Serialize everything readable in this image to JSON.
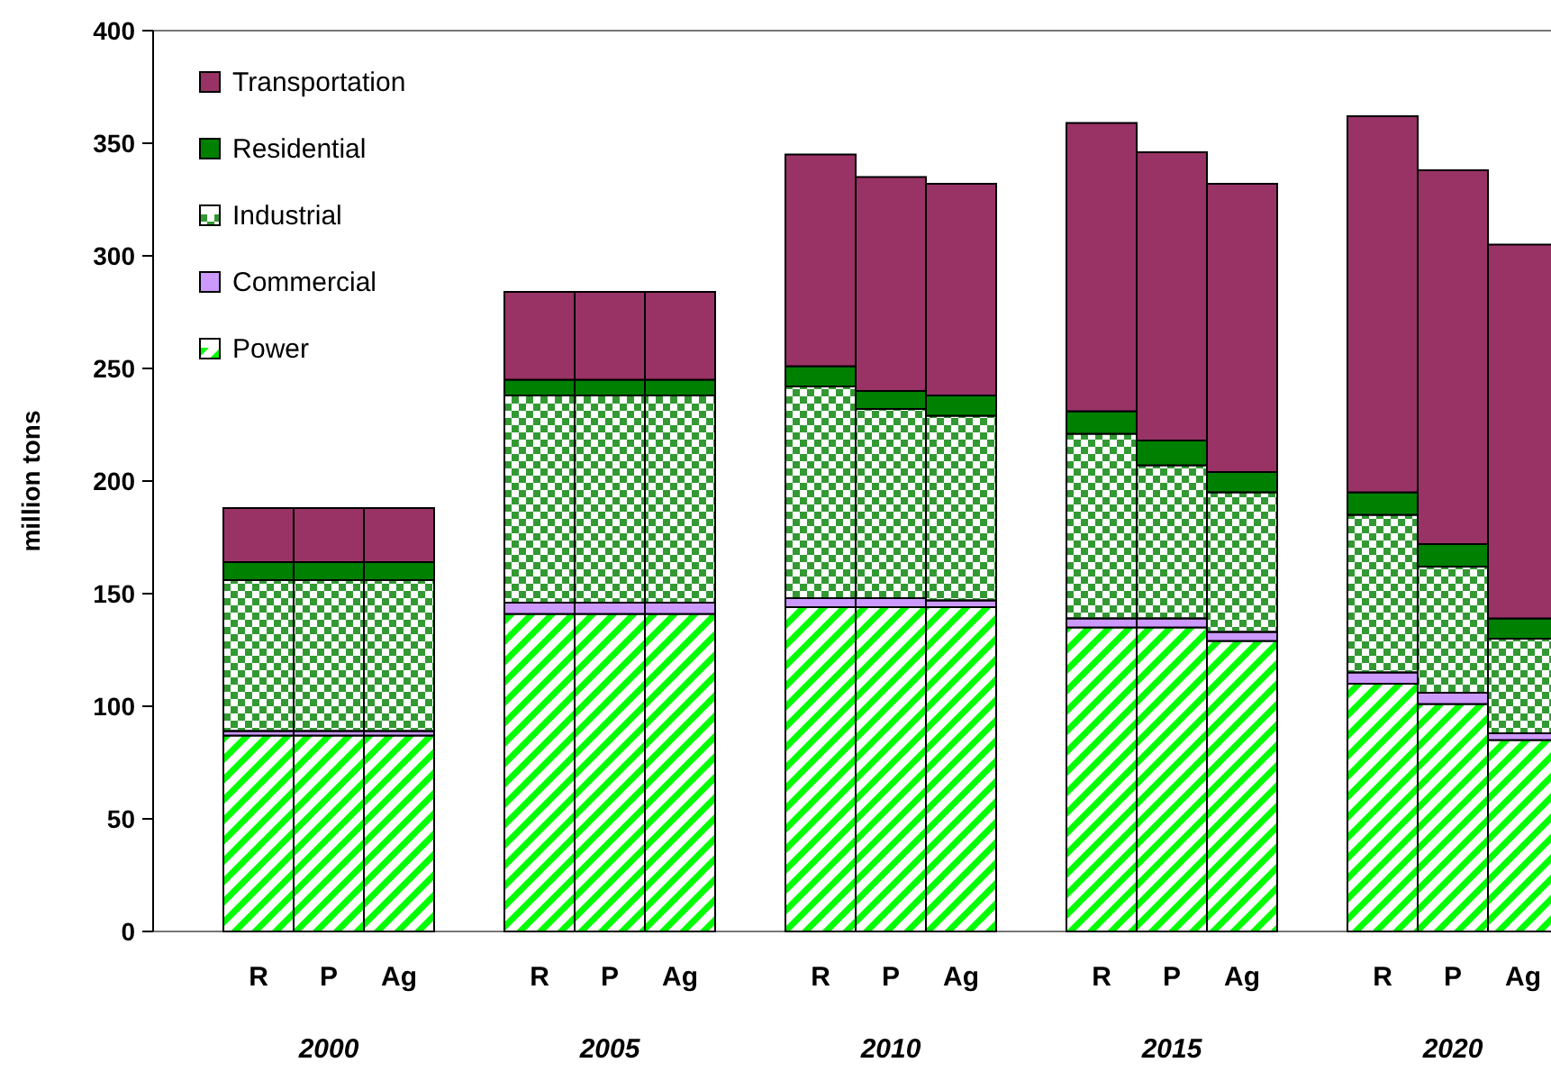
{
  "chart_data": {
    "type": "bar",
    "stacked": true,
    "ylabel": "million tons",
    "categories": [
      "R",
      "P",
      "Ag",
      null,
      "R",
      "P",
      "Ag",
      null,
      "R",
      "P",
      "Ag",
      null,
      "R",
      "P",
      "Ag",
      null,
      "R",
      "P",
      "Ag"
    ],
    "annotations": [
      "2000",
      "2005",
      "2010",
      "2015",
      "2020"
    ],
    "series": [
      {
        "name": "Power",
        "color": "#00ff00",
        "values": [
          87,
          87,
          87,
          null,
          141,
          141,
          141,
          null,
          144,
          144,
          144,
          null,
          135,
          135,
          129,
          null,
          110,
          101,
          85
        ]
      },
      {
        "name": "Commercial",
        "color": "#cc99ff",
        "values": [
          2,
          2,
          2,
          null,
          5,
          5,
          5,
          null,
          4,
          4,
          3,
          null,
          4,
          4,
          4,
          null,
          5,
          5,
          3
        ]
      },
      {
        "name": "Industrial",
        "color": "#339933",
        "values": [
          67,
          67,
          67,
          null,
          92,
          92,
          92,
          null,
          94,
          84,
          82,
          null,
          82,
          68,
          62,
          null,
          70,
          56,
          42
        ]
      },
      {
        "name": "Residential",
        "color": "#008000",
        "values": [
          8,
          8,
          8,
          null,
          7,
          7,
          7,
          null,
          9,
          8,
          9,
          null,
          10,
          11,
          9,
          null,
          10,
          10,
          9
        ]
      },
      {
        "name": "Transportation",
        "color": "#993366",
        "values": [
          24,
          24,
          24,
          null,
          39,
          39,
          39,
          null,
          94,
          95,
          94,
          null,
          128,
          128,
          128,
          null,
          167,
          166,
          166
        ]
      }
    ],
    "ylim": [
      0,
      400
    ],
    "yticks": [
      0,
      50,
      100,
      150,
      200,
      250,
      300,
      350,
      400
    ],
    "grid": false,
    "legend": "top left"
  }
}
